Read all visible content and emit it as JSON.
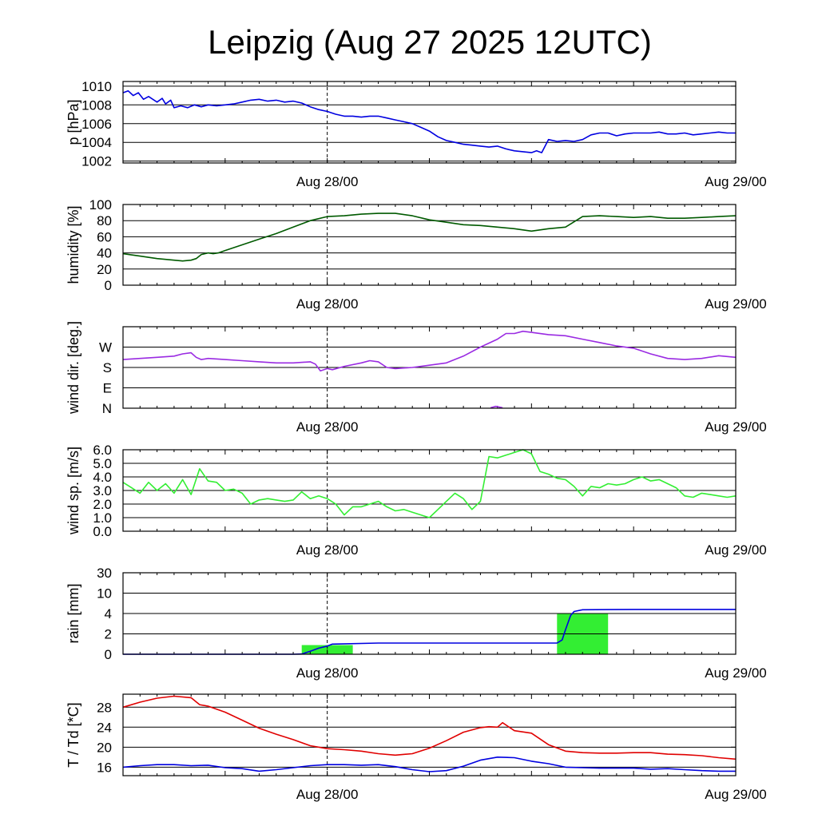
{
  "title": "Leipzig (Aug 27 2025 12UTC)",
  "x_tick_labels": [
    "Aug 28/00",
    "Aug 29/00"
  ],
  "colors": {
    "pressure": "#0000e0",
    "humidity": "#005a00",
    "wind_dir": "#9a2be2",
    "wind_speed": "#33ee33",
    "rain_bar": "#33ee33",
    "rain_accum": "#0000e0",
    "temperature": "#e00000",
    "dewpoint": "#0000e0"
  },
  "chart_data": [
    {
      "type": "line",
      "ylabel": "p [hPa]",
      "ylim": [
        1001.8,
        1010.5
      ],
      "yticks": [
        {
          "v": 1002,
          "label": "1002"
        },
        {
          "v": 1004,
          "label": "1004"
        },
        {
          "v": 1006,
          "label": "1006"
        },
        {
          "v": 1008,
          "label": "1008"
        },
        {
          "v": 1010,
          "label": "1010"
        }
      ],
      "xlim": [
        0,
        36
      ],
      "series": [
        {
          "name": "pressure",
          "color_key": "pressure",
          "x": [
            0,
            0.3,
            0.6,
            0.9,
            1.2,
            1.5,
            2,
            2.3,
            2.5,
            2.8,
            3,
            3.4,
            3.8,
            4.2,
            4.6,
            5,
            5.5,
            6,
            6.5,
            7,
            7.5,
            8,
            8.5,
            9,
            9.5,
            10,
            10.5,
            11,
            11.5,
            12,
            12.5,
            13,
            13.5,
            14,
            14.5,
            15,
            15.5,
            16,
            16.5,
            17,
            17.5,
            18,
            18.5,
            19,
            19.5,
            20,
            20.5,
            21,
            21.5,
            22,
            22.5,
            23,
            23.5,
            24,
            24.3,
            24.6,
            25,
            25.5,
            26,
            26.5,
            27,
            27.5,
            28,
            28.5,
            29,
            29.5,
            30,
            30.5,
            31,
            31.5,
            32,
            32.5,
            33,
            33.5,
            34,
            34.5,
            35,
            35.5,
            36
          ],
          "y": [
            1009.3,
            1009.5,
            1009,
            1009.3,
            1008.6,
            1008.9,
            1008.3,
            1008.7,
            1008.1,
            1008.5,
            1007.7,
            1007.9,
            1007.7,
            1008.0,
            1007.8,
            1008.0,
            1007.9,
            1008.0,
            1008.1,
            1008.3,
            1008.5,
            1008.6,
            1008.4,
            1008.5,
            1008.3,
            1008.4,
            1008.2,
            1007.8,
            1007.5,
            1007.3,
            1007.0,
            1006.8,
            1006.8,
            1006.7,
            1006.8,
            1006.8,
            1006.6,
            1006.4,
            1006.2,
            1006.0,
            1005.6,
            1005.2,
            1004.6,
            1004.2,
            1004.0,
            1003.8,
            1003.7,
            1003.6,
            1003.5,
            1003.6,
            1003.3,
            1003.1,
            1003.0,
            1002.9,
            1003.1,
            1002.9,
            1004.3,
            1004.1,
            1004.2,
            1004.1,
            1004.3,
            1004.8,
            1005.0,
            1005.0,
            1004.7,
            1004.9,
            1005.0,
            1005.0,
            1005.0,
            1005.1,
            1004.9,
            1004.9,
            1005.0,
            1004.8,
            1004.9,
            1005.0,
            1005.1,
            1005.0,
            1005.0
          ]
        }
      ]
    },
    {
      "type": "line",
      "ylabel": "humidity [%]",
      "ylim": [
        0,
        100
      ],
      "yticks": [
        {
          "v": 0,
          "label": "0"
        },
        {
          "v": 20,
          "label": "20"
        },
        {
          "v": 40,
          "label": "40"
        },
        {
          "v": 60,
          "label": "60"
        },
        {
          "v": 80,
          "label": "80"
        },
        {
          "v": 100,
          "label": "100"
        }
      ],
      "xlim": [
        0,
        36
      ],
      "series": [
        {
          "name": "humidity",
          "color_key": "humidity",
          "x": [
            0,
            1,
            2,
            3,
            3.5,
            4,
            4.3,
            4.6,
            5,
            5.3,
            5.6,
            6,
            7,
            8,
            9,
            10,
            11,
            12,
            13,
            14,
            15,
            16,
            17,
            18,
            19,
            20,
            21,
            22,
            23,
            24,
            25,
            26,
            27,
            28,
            29,
            30,
            31,
            32,
            33,
            34,
            35,
            36
          ],
          "y": [
            39,
            36,
            33,
            31,
            30,
            31,
            33,
            38,
            40,
            39,
            40,
            43,
            50,
            57,
            64,
            72,
            80,
            85,
            86,
            88,
            89,
            89,
            86,
            81,
            78,
            75,
            74,
            72,
            70,
            67,
            70,
            72,
            85,
            86,
            85,
            84,
            85,
            83,
            83,
            84,
            85,
            86
          ]
        }
      ]
    },
    {
      "type": "line",
      "ylabel": "wind dir. [deg.]",
      "ylim": [
        0,
        360
      ],
      "yticks": [
        {
          "v": 0,
          "label": "N"
        },
        {
          "v": 90,
          "label": "E"
        },
        {
          "v": 180,
          "label": "S"
        },
        {
          "v": 270,
          "label": "W"
        }
      ],
      "xlim": [
        0,
        36
      ],
      "series": [
        {
          "name": "wind direction",
          "color_key": "wind_dir",
          "x": [
            0,
            1,
            2,
            3,
            3.5,
            4,
            4.3,
            4.6,
            5,
            6,
            7,
            8,
            9,
            10,
            11,
            11.3,
            11.6,
            12,
            12.3,
            13,
            14,
            14.5,
            15,
            15.5,
            16,
            17,
            18,
            19,
            20,
            21,
            22,
            22.5,
            23,
            23.5,
            24,
            25,
            26,
            27,
            28,
            29,
            30,
            31,
            32,
            33,
            34,
            35,
            36
          ],
          "y": [
            215,
            220,
            225,
            230,
            240,
            245,
            225,
            215,
            220,
            215,
            210,
            205,
            200,
            200,
            205,
            195,
            165,
            175,
            170,
            185,
            200,
            210,
            205,
            180,
            175,
            180,
            190,
            200,
            230,
            270,
            305,
            330,
            330,
            340,
            335,
            325,
            320,
            305,
            290,
            275,
            265,
            240,
            220,
            215,
            220,
            232,
            225
          ]
        },
        {
          "name": "wind direction (north)",
          "color_key": "wind_dir",
          "x": [
            21.6,
            21.9,
            22.3
          ],
          "y": [
            2,
            8,
            2
          ]
        }
      ]
    },
    {
      "type": "line",
      "ylabel": "wind sp. [m/s]",
      "ylim": [
        0,
        6
      ],
      "yticks": [
        {
          "v": 0,
          "label": "0.0"
        },
        {
          "v": 1,
          "label": "1.0"
        },
        {
          "v": 2,
          "label": "2.0"
        },
        {
          "v": 3,
          "label": "3.0"
        },
        {
          "v": 4,
          "label": "4.0"
        },
        {
          "v": 5,
          "label": "5.0"
        },
        {
          "v": 6,
          "label": "6.0"
        }
      ],
      "xlim": [
        0,
        36
      ],
      "series": [
        {
          "name": "wind speed",
          "color_key": "wind_speed",
          "x": [
            0,
            0.5,
            1,
            1.5,
            2,
            2.5,
            3,
            3.5,
            4,
            4.5,
            5,
            5.5,
            6,
            6.5,
            7,
            7.5,
            8,
            8.5,
            9,
            9.5,
            10,
            10.5,
            11,
            11.5,
            12,
            12.5,
            13,
            13.5,
            14,
            14.5,
            15,
            15.5,
            16,
            16.5,
            17,
            17.5,
            18,
            18.5,
            19,
            19.5,
            20,
            20.5,
            21,
            21.5,
            22,
            22.5,
            23,
            23.5,
            24,
            24.5,
            25,
            25.5,
            26,
            26.5,
            27,
            27.5,
            28,
            28.5,
            29,
            29.5,
            30,
            30.5,
            31,
            31.5,
            32,
            32.5,
            33,
            33.5,
            34,
            34.5,
            35,
            35.5,
            36
          ],
          "y": [
            3.6,
            3.2,
            2.8,
            3.6,
            3.0,
            3.5,
            2.8,
            3.8,
            2.7,
            4.6,
            3.7,
            3.6,
            3.0,
            3.1,
            2.8,
            2.0,
            2.3,
            2.4,
            2.3,
            2.2,
            2.3,
            2.9,
            2.4,
            2.6,
            2.4,
            2.0,
            1.2,
            1.8,
            1.8,
            2.0,
            2.2,
            1.8,
            1.5,
            1.6,
            1.4,
            1.2,
            1.0,
            1.6,
            2.2,
            2.8,
            2.4,
            1.6,
            2.2,
            5.5,
            5.4,
            5.6,
            5.8,
            6.0,
            5.7,
            4.4,
            4.2,
            3.9,
            3.8,
            3.3,
            2.6,
            3.3,
            3.2,
            3.5,
            3.4,
            3.5,
            3.8,
            4.0,
            3.7,
            3.8,
            3.5,
            3.2,
            2.6,
            2.5,
            2.8,
            2.7,
            2.6,
            2.5,
            2.6
          ]
        }
      ]
    },
    {
      "type": "bar+line",
      "ylabel": "rain [mm]",
      "scale": "nonlinear",
      "scale_map": [
        [
          0,
          0
        ],
        [
          2,
          1
        ],
        [
          4,
          2
        ],
        [
          10,
          3
        ],
        [
          30,
          4
        ]
      ],
      "ylim": [
        0,
        30
      ],
      "yticks": [
        {
          "v": 0,
          "label": "0"
        },
        {
          "v": 2,
          "label": "2"
        },
        {
          "v": 4,
          "label": "4"
        },
        {
          "v": 10,
          "label": "10"
        },
        {
          "v": 30,
          "label": "30"
        }
      ],
      "xlim": [
        0,
        36
      ],
      "bars": [
        {
          "x0": 10.5,
          "x1": 13.5,
          "value": 0.9
        },
        {
          "x0": 13.5,
          "x1": 16.5,
          "value": 0.02
        },
        {
          "x0": 25.5,
          "x1": 28.5,
          "value": 4.0
        },
        {
          "x0": 28.5,
          "x1": 31.5,
          "value": 0.02
        }
      ],
      "series": [
        {
          "name": "accumulated rain",
          "color_key": "rain_accum",
          "x": [
            0,
            10,
            10.5,
            11,
            11.5,
            12,
            12.3,
            15,
            20,
            24,
            25.5,
            25.8,
            26,
            26.3,
            26.5,
            27,
            30,
            36
          ],
          "y": [
            0,
            0,
            0.02,
            0.3,
            0.6,
            0.8,
            1.0,
            1.1,
            1.1,
            1.1,
            1.1,
            1.4,
            2.4,
            3.8,
            4.6,
            5.1,
            5.2,
            5.2
          ]
        }
      ]
    },
    {
      "type": "line",
      "ylabel": "T / Td [*C]",
      "ylim": [
        14.3,
        30.6
      ],
      "yticks": [
        {
          "v": 16,
          "label": "16"
        },
        {
          "v": 20,
          "label": "20"
        },
        {
          "v": 24,
          "label": "24"
        },
        {
          "v": 28,
          "label": "28"
        }
      ],
      "xlim": [
        0,
        36
      ],
      "series": [
        {
          "name": "temperature",
          "color_key": "temperature",
          "x": [
            0,
            1,
            2,
            3,
            4,
            4.5,
            5,
            6,
            7,
            8,
            9,
            10,
            11,
            12,
            13,
            14,
            15,
            16,
            17,
            18,
            19,
            20,
            21,
            21.5,
            22,
            22.3,
            23,
            24,
            25,
            26,
            27,
            28,
            29,
            30,
            31,
            32,
            33,
            34,
            35,
            36
          ],
          "y": [
            28.0,
            29.0,
            29.8,
            30.2,
            29.9,
            28.5,
            28.2,
            27.0,
            25.4,
            23.8,
            22.6,
            21.5,
            20.3,
            19.7,
            19.5,
            19.2,
            18.7,
            18.4,
            18.7,
            19.8,
            21.3,
            23.0,
            23.9,
            24.1,
            24.0,
            24.9,
            23.3,
            22.8,
            20.5,
            19.2,
            18.9,
            18.8,
            18.8,
            18.9,
            18.9,
            18.6,
            18.5,
            18.3,
            17.9,
            17.6
          ]
        },
        {
          "name": "dewpoint",
          "color_key": "dewpoint",
          "x": [
            0,
            1,
            2,
            3,
            4,
            5,
            6,
            7,
            8,
            9,
            10,
            11,
            12,
            13,
            14,
            15,
            16,
            17,
            18,
            19,
            20,
            21,
            22,
            23,
            24,
            25,
            26,
            27,
            28,
            29,
            30,
            31,
            32,
            33,
            34,
            35,
            36
          ],
          "y": [
            16.0,
            16.3,
            16.5,
            16.5,
            16.3,
            16.4,
            15.9,
            15.7,
            15.2,
            15.5,
            15.9,
            16.3,
            16.5,
            16.5,
            16.4,
            16.5,
            16.1,
            15.5,
            15.1,
            15.3,
            16.2,
            17.4,
            18.0,
            17.9,
            17.2,
            16.7,
            16.0,
            15.9,
            15.8,
            15.8,
            15.8,
            15.6,
            15.7,
            15.5,
            15.3,
            15.2,
            15.2
          ]
        }
      ]
    }
  ]
}
